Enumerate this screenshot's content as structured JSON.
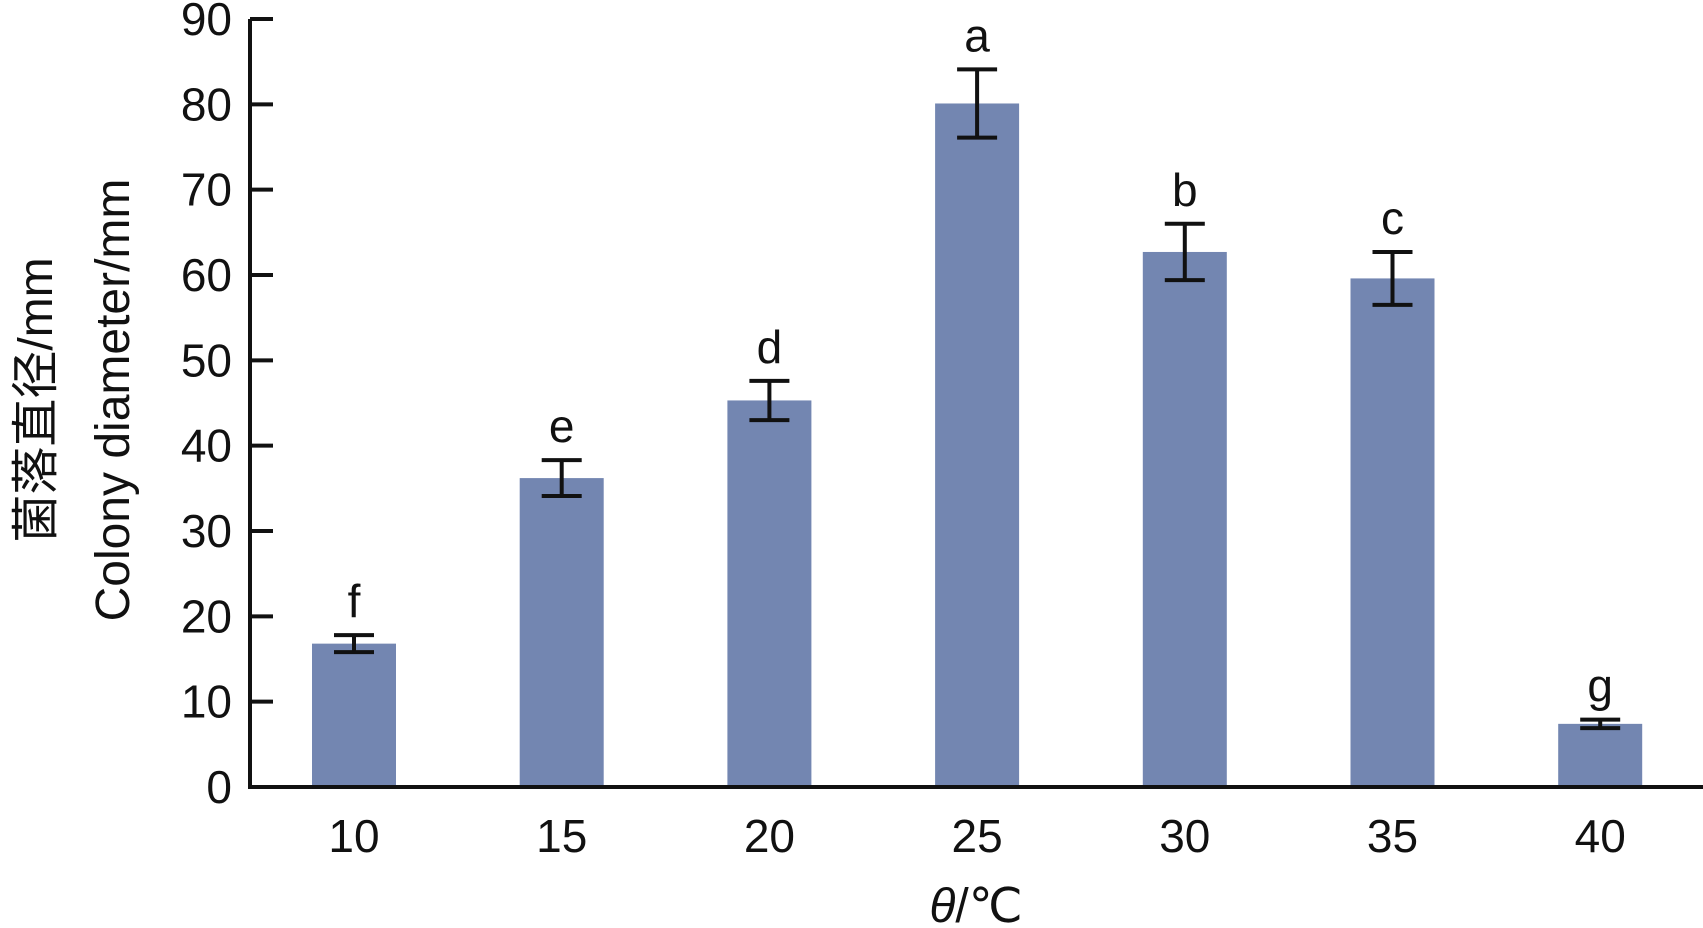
{
  "chart_data": {
    "type": "bar",
    "categories": [
      "10",
      "15",
      "20",
      "25",
      "30",
      "35",
      "40"
    ],
    "values": [
      16.8,
      36.2,
      45.3,
      80.1,
      62.7,
      59.6,
      7.4
    ],
    "error": [
      1.0,
      2.1,
      2.3,
      4.0,
      3.3,
      3.1,
      0.5
    ],
    "significance": [
      "f",
      "e",
      "d",
      "a",
      "b",
      "c",
      "g"
    ],
    "xlabel_symbol": "θ",
    "xlabel_unit": "/℃",
    "ylabel_cn": "菌落直径/mm",
    "ylabel_en": "Colony diameter/mm",
    "ylim": [
      0,
      90
    ],
    "yticks": [
      0,
      10,
      20,
      30,
      40,
      50,
      60,
      70,
      80,
      90
    ],
    "grid": false,
    "colors": {
      "bar": "#7386b1",
      "axis": "#111111",
      "error_bar": "#111111"
    }
  }
}
